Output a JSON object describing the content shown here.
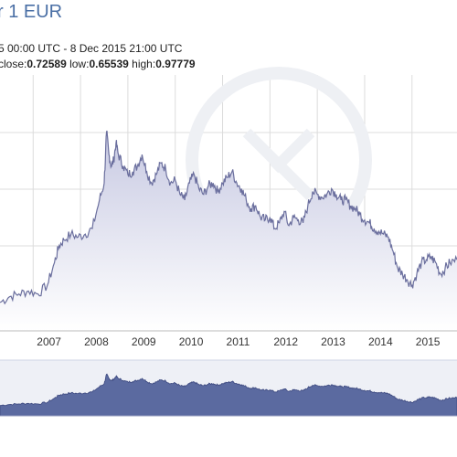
{
  "header": {
    "title": "r 1 EUR",
    "range_text": "5 00:00 UTC - 8 Dec 2015 21:00 UTC",
    "close_label": "close:",
    "close_value": "0.72589",
    "low_label": " low:",
    "low_value": "0.65539",
    "high_label": " high:",
    "high_value": "0.97779"
  },
  "colors": {
    "title": "#4a6fa5",
    "line": "#6b6f9e",
    "fill_top": "#c7c9e2",
    "fill_bottom": "#ffffff",
    "grid": "#dcdcdc",
    "nav_fill": "#5b6aa0",
    "nav_bg": "#eef0f6"
  },
  "chart_data": {
    "type": "area",
    "title": "r 1 EUR",
    "xlabel": "",
    "ylabel": "",
    "xlim": [
      2006.3,
      2015.95
    ],
    "ylim": [
      0.6,
      1.05
    ],
    "grid": true,
    "x_ticks": [
      "2007",
      "2008",
      "2009",
      "2010",
      "2011",
      "2012",
      "2013",
      "2014",
      "2015"
    ],
    "x_tick_values": [
      2007,
      2008,
      2009,
      2010,
      2011,
      2012,
      2013,
      2014,
      2015
    ],
    "series": [
      {
        "x": [
          2006.3,
          2006.5,
          2006.7,
          2006.9,
          2007.1,
          2007.3,
          2007.45,
          2007.55,
          2007.65,
          2007.8,
          2007.95,
          2008.1,
          2008.25,
          2008.4,
          2008.5,
          2008.55,
          2008.6,
          2008.65,
          2008.7,
          2008.75,
          2008.8,
          2008.9,
          2009.0,
          2009.1,
          2009.2,
          2009.3,
          2009.4,
          2009.5,
          2009.6,
          2009.7,
          2009.8,
          2009.9,
          2010.0,
          2010.1,
          2010.2,
          2010.3,
          2010.4,
          2010.5,
          2010.6,
          2010.7,
          2010.8,
          2010.9,
          2011.0,
          2011.1,
          2011.2,
          2011.3,
          2011.4,
          2011.5,
          2011.6,
          2011.7,
          2011.8,
          2011.9,
          2012.0,
          2012.1,
          2012.2,
          2012.3,
          2012.4,
          2012.5,
          2012.6,
          2012.7,
          2012.8,
          2012.9,
          2013.0,
          2013.1,
          2013.2,
          2013.3,
          2013.4,
          2013.5,
          2013.6,
          2013.7,
          2013.8,
          2013.9,
          2014.0,
          2014.1,
          2014.2,
          2014.3,
          2014.4,
          2014.5,
          2014.6,
          2014.7,
          2014.8,
          2014.9,
          2015.0,
          2015.1,
          2015.2,
          2015.3,
          2015.4,
          2015.5,
          2015.6,
          2015.7,
          2015.8,
          2015.95
        ],
        "values": [
          0.65,
          0.66,
          0.665,
          0.67,
          0.665,
          0.68,
          0.72,
          0.75,
          0.76,
          0.77,
          0.765,
          0.77,
          0.78,
          0.83,
          0.86,
          0.95,
          0.91,
          0.89,
          0.9,
          0.93,
          0.91,
          0.89,
          0.875,
          0.88,
          0.89,
          0.91,
          0.88,
          0.86,
          0.875,
          0.895,
          0.885,
          0.86,
          0.865,
          0.84,
          0.83,
          0.86,
          0.875,
          0.85,
          0.84,
          0.855,
          0.86,
          0.845,
          0.86,
          0.87,
          0.88,
          0.86,
          0.85,
          0.83,
          0.815,
          0.82,
          0.8,
          0.795,
          0.8,
          0.78,
          0.79,
          0.81,
          0.785,
          0.8,
          0.795,
          0.79,
          0.82,
          0.845,
          0.84,
          0.835,
          0.84,
          0.85,
          0.84,
          0.83,
          0.83,
          0.82,
          0.815,
          0.805,
          0.795,
          0.79,
          0.78,
          0.775,
          0.77,
          0.765,
          0.74,
          0.71,
          0.7,
          0.69,
          0.68,
          0.7,
          0.72,
          0.725,
          0.73,
          0.72,
          0.7,
          0.71,
          0.72,
          0.725
        ]
      }
    ]
  }
}
